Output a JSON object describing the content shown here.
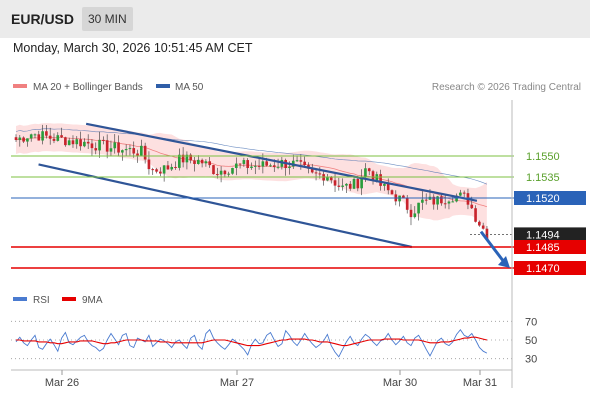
{
  "header": {
    "pair": "EUR/USD",
    "timeframe": "30 MIN"
  },
  "datetime": "Monday, March 30, 2026 10:51:45 AM CET",
  "legend": {
    "ma20": "MA 20 + Bollinger Bands",
    "ma50": "MA 50",
    "credit": "Research © 2026 Trading Central",
    "rsi": "RSI",
    "rsi_ma": "9MA"
  },
  "colors": {
    "bollinger": "#fcd6d6",
    "ma20": "#f08080",
    "ma50": "#2f5ea8",
    "support": "#e60000",
    "resistance_minor": "#7cc142",
    "pivot": "#2a63b8",
    "trend": "#2f5597",
    "candle_up": "#2a9d3c",
    "candle_down": "#c8232c",
    "rsi": "#4a7bd0",
    "rsi_ma": "#e60000"
  },
  "chart_data": [
    {
      "type": "candlestick",
      "x_ticks": [
        "Mar 26",
        "Mar 27",
        "Mar 30",
        "Mar 31"
      ],
      "ylim": [
        1.146,
        1.159
      ],
      "levels": [
        {
          "value": 1.155,
          "label": "1.1550",
          "style": "resistance-minor"
        },
        {
          "value": 1.1535,
          "label": "1.1535",
          "style": "resistance-minor"
        },
        {
          "value": 1.152,
          "label": "1.1520",
          "style": "pivot"
        },
        {
          "value": 1.1494,
          "label": "1.1494",
          "style": "last-price"
        },
        {
          "value": 1.1485,
          "label": "1.1485",
          "style": "support"
        },
        {
          "value": 1.147,
          "label": "1.1470",
          "style": "support"
        }
      ],
      "last_price": 1.1494,
      "trend_channel": {
        "upper": [
          {
            "x": 0.15,
            "y": 1.1573
          },
          {
            "x": 0.93,
            "y": 1.1518
          }
        ],
        "lower": [
          {
            "x": 0.055,
            "y": 1.1544
          },
          {
            "x": 0.8,
            "y": 1.1485
          }
        ]
      },
      "forecast_arrow": {
        "from": 1.1496,
        "to": 1.147
      }
    },
    {
      "type": "line",
      "title": "RSI",
      "ylim": [
        20,
        80
      ],
      "y_ticks": [
        70,
        50,
        30
      ],
      "series": [
        {
          "name": "RSI",
          "values": [
            48,
            53,
            47,
            44,
            50,
            55,
            42,
            40,
            46,
            51,
            45,
            38,
            52,
            58,
            47,
            45,
            49,
            53,
            55,
            48,
            44,
            42,
            38,
            41,
            50,
            57,
            51,
            45,
            55,
            57,
            44,
            42,
            52,
            50,
            48,
            55,
            43,
            47,
            51,
            49,
            46,
            42,
            48,
            50,
            45,
            41,
            52,
            55,
            44,
            40,
            57,
            61,
            52,
            47,
            43,
            40,
            45,
            51,
            48,
            44,
            40,
            34,
            45,
            51,
            46,
            47,
            55,
            58,
            50,
            43,
            46,
            60,
            55,
            48,
            44,
            50,
            57,
            51,
            46,
            42,
            45,
            49,
            56,
            44,
            37,
            32,
            40,
            48,
            54,
            47,
            44,
            51,
            56,
            53,
            48,
            44,
            49,
            51,
            57,
            50,
            45,
            49,
            54,
            47,
            44,
            52,
            55,
            48,
            40,
            33,
            41,
            49,
            52,
            46,
            44,
            48,
            56,
            61,
            55,
            53,
            57,
            50,
            42,
            38,
            36
          ]
        },
        {
          "name": "9MA",
          "values": [
            50,
            50,
            49,
            49,
            49,
            49,
            48,
            48,
            48,
            47,
            47,
            46,
            46,
            47,
            48,
            48,
            48,
            49,
            49,
            49,
            49,
            48,
            47,
            46,
            46,
            47,
            47,
            48,
            49,
            50,
            50,
            50,
            50,
            50,
            49,
            49,
            49,
            49,
            48,
            48,
            48,
            47,
            47,
            47,
            47,
            47,
            47,
            47,
            47,
            47,
            48,
            49,
            50,
            50,
            50,
            50,
            49,
            48,
            47,
            46,
            45,
            44,
            44,
            44,
            44,
            45,
            46,
            47,
            48,
            49,
            50,
            50,
            51,
            51,
            51,
            51,
            51,
            50,
            50,
            49,
            48,
            48,
            48,
            47,
            46,
            45,
            44,
            44,
            45,
            46,
            47,
            48,
            49,
            50,
            50,
            50,
            50,
            51,
            51,
            51,
            51,
            51,
            50,
            50,
            50,
            50,
            50,
            49,
            48,
            47,
            47,
            47,
            48,
            48,
            48,
            49,
            50,
            51,
            52,
            52,
            53,
            53,
            52,
            51,
            50
          ]
        }
      ]
    }
  ]
}
